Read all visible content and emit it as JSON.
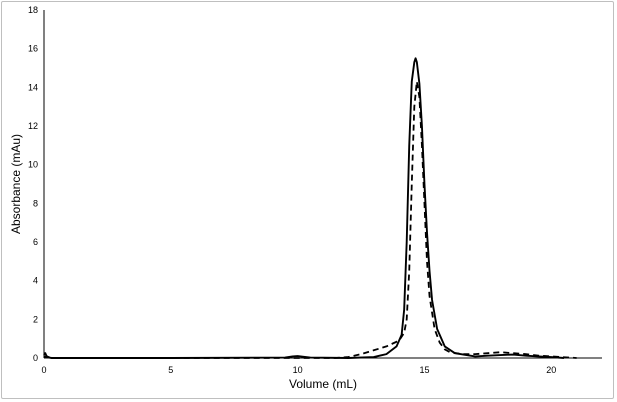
{
  "chart_data": {
    "type": "line",
    "title": "",
    "xlabel": "Volume (mL)",
    "ylabel": "Absorbance (mAu)",
    "xlim": [
      0,
      22
    ],
    "ylim": [
      0,
      18
    ],
    "x_ticks": [
      0,
      5,
      10,
      15,
      20
    ],
    "y_ticks": [
      0,
      2,
      4,
      6,
      8,
      10,
      12,
      14,
      16,
      18
    ],
    "grid": false,
    "legend": "none",
    "series": [
      {
        "style": "solid",
        "color": "#000000",
        "x": [
          0.0,
          0.05,
          0.1,
          0.2,
          0.3,
          1.0,
          5.0,
          9.5,
          9.8,
          10.0,
          10.2,
          10.5,
          12.0,
          13.0,
          13.5,
          13.9,
          14.1,
          14.2,
          14.3,
          14.4,
          14.5,
          14.6,
          14.65,
          14.7,
          14.8,
          14.9,
          15.0,
          15.1,
          15.2,
          15.3,
          15.5,
          15.8,
          16.2,
          17.0,
          17.5,
          18.0,
          18.5,
          19.0,
          19.5,
          20.0,
          20.5
        ],
        "y": [
          0.15,
          0.25,
          0.1,
          0.02,
          0.0,
          0.0,
          0.0,
          0.02,
          0.08,
          0.1,
          0.07,
          0.02,
          0.0,
          0.05,
          0.2,
          0.6,
          1.2,
          2.5,
          6.0,
          11.0,
          14.3,
          15.3,
          15.5,
          15.3,
          14.2,
          12.0,
          9.0,
          6.5,
          4.5,
          3.0,
          1.5,
          0.6,
          0.25,
          0.08,
          0.12,
          0.15,
          0.18,
          0.12,
          0.08,
          0.05,
          0.0
        ]
      },
      {
        "style": "dashed",
        "color": "#000000",
        "x": [
          0.0,
          0.1,
          0.3,
          1.0,
          5.0,
          10.0,
          11.5,
          12.0,
          12.5,
          13.0,
          13.5,
          14.0,
          14.2,
          14.3,
          14.4,
          14.5,
          14.6,
          14.7,
          14.8,
          14.9,
          15.0,
          15.1,
          15.2,
          15.4,
          15.6,
          15.8,
          16.0,
          16.5,
          17.0,
          17.5,
          18.0,
          18.5,
          19.0,
          19.5,
          20.0,
          20.5,
          21.0
        ],
        "y": [
          0.05,
          0.08,
          0.0,
          0.0,
          0.0,
          0.0,
          0.0,
          0.05,
          0.2,
          0.4,
          0.6,
          0.9,
          1.3,
          2.0,
          4.5,
          9.0,
          13.0,
          14.3,
          13.5,
          11.0,
          8.0,
          5.0,
          3.2,
          1.5,
          0.8,
          0.45,
          0.3,
          0.2,
          0.2,
          0.25,
          0.3,
          0.25,
          0.2,
          0.12,
          0.08,
          0.04,
          0.0
        ]
      }
    ]
  }
}
